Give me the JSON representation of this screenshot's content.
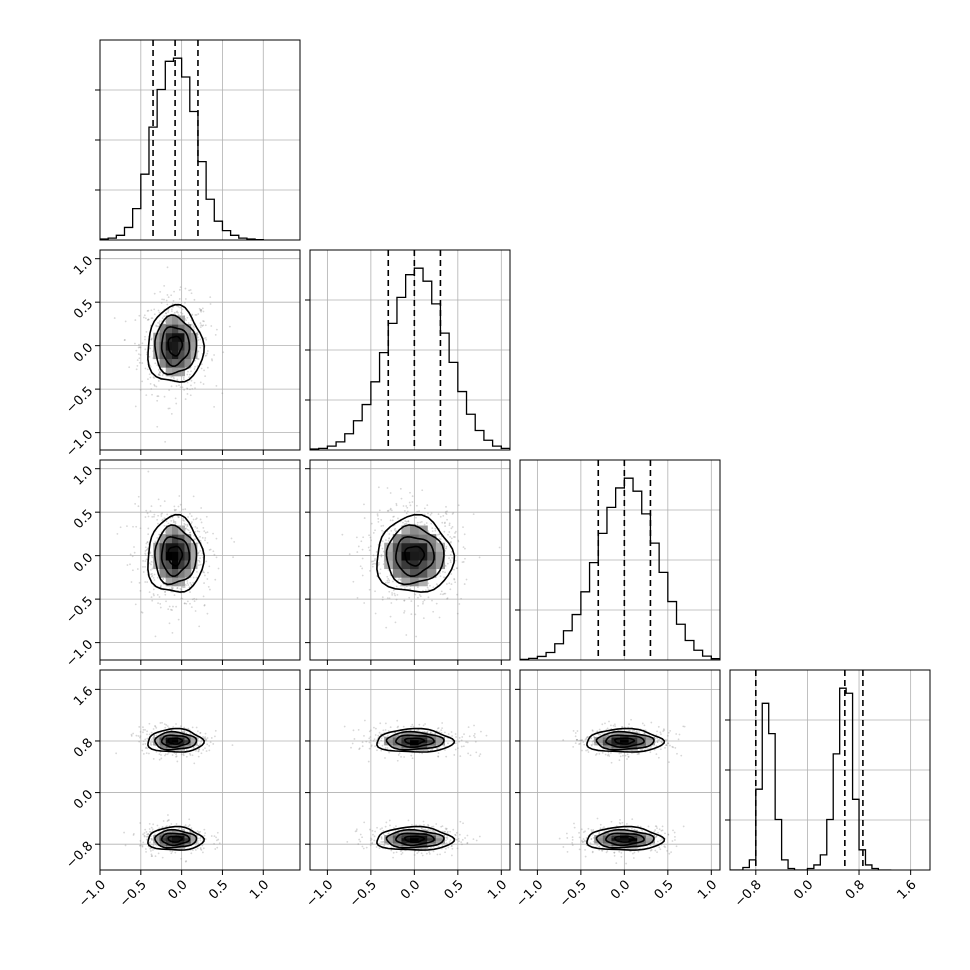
{
  "chart_data": {
    "type": "corner",
    "title": "",
    "parameters": [
      {
        "index": 0,
        "range": [
          -1.0,
          1.45
        ],
        "ticks": [
          -1.0,
          -0.5,
          0.0,
          0.5,
          1.0
        ],
        "tick_labels": [
          "−1.0",
          "−0.5",
          "0.0",
          "0.5",
          "1.0"
        ],
        "quantiles": [
          -0.35,
          -0.08,
          0.2
        ],
        "mean": -0.08,
        "sd": 0.17
      },
      {
        "index": 1,
        "range": [
          -1.2,
          1.1
        ],
        "ticks": [
          -1.0,
          -0.5,
          0.0,
          0.5,
          1.0
        ],
        "tick_labels": [
          "−1.0",
          "−0.5",
          "0.0",
          "0.5",
          "1.0"
        ],
        "quantiles": [
          -0.3,
          0.0,
          0.3
        ],
        "mean": 0.0,
        "sd": 0.22
      },
      {
        "index": 2,
        "range": [
          -1.2,
          1.1
        ],
        "ticks": [
          -1.0,
          -0.5,
          0.0,
          0.5,
          1.0
        ],
        "tick_labels": [
          "−1.0",
          "−0.5",
          "0.0",
          "0.5",
          "1.0"
        ],
        "quantiles": [
          -0.3,
          0.0,
          0.3
        ],
        "mean": 0.0,
        "sd": 0.22
      },
      {
        "index": 3,
        "range": [
          -1.2,
          1.9
        ],
        "ticks": [
          -0.8,
          0.0,
          0.8,
          1.6
        ],
        "tick_labels": [
          "−0.8",
          "0.0",
          "0.8",
          "1.6"
        ],
        "quantiles": [
          -0.8,
          0.58,
          0.86
        ],
        "modes": [
          {
            "mean": -0.72,
            "sd": 0.1
          },
          {
            "mean": 0.8,
            "sd": 0.1
          }
        ]
      }
    ],
    "histograms": [
      {
        "param": 0,
        "bins": [
          -1.0,
          -0.9,
          -0.8,
          -0.7,
          -0.6,
          -0.5,
          -0.4,
          -0.3,
          -0.2,
          -0.1,
          0.0,
          0.1,
          0.2,
          0.3,
          0.4,
          0.5,
          0.6,
          0.7,
          0.8,
          0.9
        ],
        "values": [
          0.3,
          0.6,
          1.5,
          4,
          10,
          21,
          36,
          48,
          57,
          58,
          52,
          41,
          25,
          13,
          6,
          3,
          1.5,
          0.6,
          0.3,
          0.1
        ]
      },
      {
        "param": 1,
        "bins": [
          -1.2,
          -1.1,
          -1.0,
          -0.9,
          -0.8,
          -0.7,
          -0.6,
          -0.5,
          -0.4,
          -0.3,
          -0.2,
          -0.1,
          0.0,
          0.1,
          0.2,
          0.3,
          0.4,
          0.5,
          0.6,
          0.7,
          0.8,
          0.9,
          1.0
        ],
        "values": [
          0.3,
          0.5,
          1.2,
          2.5,
          5,
          9,
          14,
          21,
          30,
          39,
          47,
          54,
          56,
          52,
          45,
          36,
          27,
          18,
          11,
          6,
          3,
          1.2,
          0.5
        ]
      },
      {
        "param": 2,
        "bins": [
          -1.2,
          -1.1,
          -1.0,
          -0.9,
          -0.8,
          -0.7,
          -0.6,
          -0.5,
          -0.4,
          -0.3,
          -0.2,
          -0.1,
          0.0,
          0.1,
          0.2,
          0.3,
          0.4,
          0.5,
          0.6,
          0.7,
          0.8,
          0.9,
          1.0
        ],
        "values": [
          0.2,
          0.5,
          1.1,
          2.3,
          5,
          9,
          14,
          21,
          30,
          39,
          47,
          53,
          56,
          52,
          45,
          36,
          27,
          18,
          11,
          6,
          3,
          1.2,
          0.4
        ]
      },
      {
        "param": 3,
        "bins": [
          -1.2,
          -1.1,
          -1.0,
          -0.9,
          -0.8,
          -0.7,
          -0.6,
          -0.5,
          -0.4,
          -0.3,
          -0.2,
          -0.1,
          0.0,
          0.1,
          0.2,
          0.3,
          0.4,
          0.5,
          0.6,
          0.7,
          0.8,
          0.9,
          1.0,
          1.1,
          1.2
        ],
        "values": [
          0,
          0,
          0.5,
          2,
          16,
          33,
          27,
          10,
          2,
          0.3,
          0,
          0,
          0.3,
          1,
          3,
          10,
          23,
          36,
          35,
          14,
          4,
          1,
          0.3,
          0,
          0
        ]
      }
    ],
    "pairs": [
      {
        "x_param": 0,
        "y_param": 1,
        "x_center": -0.08,
        "y_center": 0.0,
        "x_sd": 0.17,
        "y_sd": 0.22,
        "contour_radii_sd": [
          0.5,
          1.0,
          1.5,
          2.0
        ]
      },
      {
        "x_param": 0,
        "y_param": 2,
        "x_center": -0.08,
        "y_center": 0.0,
        "x_sd": 0.17,
        "y_sd": 0.22,
        "contour_radii_sd": [
          0.5,
          1.0,
          1.5,
          2.0
        ]
      },
      {
        "x_param": 1,
        "y_param": 2,
        "x_center": 0.0,
        "y_center": 0.0,
        "x_sd": 0.22,
        "y_sd": 0.22,
        "contour_radii_sd": [
          0.5,
          1.0,
          1.5,
          2.0
        ]
      },
      {
        "x_param": 0,
        "y_param": 3,
        "x_center": -0.08,
        "y_centers": [
          0.8,
          -0.72
        ],
        "x_sd": 0.17,
        "y_sd": 0.09,
        "contour_radii_sd": [
          0.5,
          1.0,
          1.5,
          2.0
        ]
      },
      {
        "x_param": 1,
        "y_param": 3,
        "x_center": 0.0,
        "y_centers": [
          0.8,
          -0.72
        ],
        "x_sd": 0.22,
        "y_sd": 0.09,
        "contour_radii_sd": [
          0.5,
          1.0,
          1.5,
          2.0
        ]
      },
      {
        "x_param": 2,
        "y_param": 3,
        "x_center": 0.0,
        "y_centers": [
          0.8,
          -0.72
        ],
        "x_sd": 0.22,
        "y_sd": 0.09,
        "contour_radii_sd": [
          0.5,
          1.0,
          1.5,
          2.0
        ]
      }
    ],
    "grid": true,
    "colors": {
      "line": "#000000",
      "grid": "#b0b0b0",
      "scatter": "#8c8c8c",
      "density_dark": "#000000",
      "density_light": "#ffffff"
    }
  }
}
